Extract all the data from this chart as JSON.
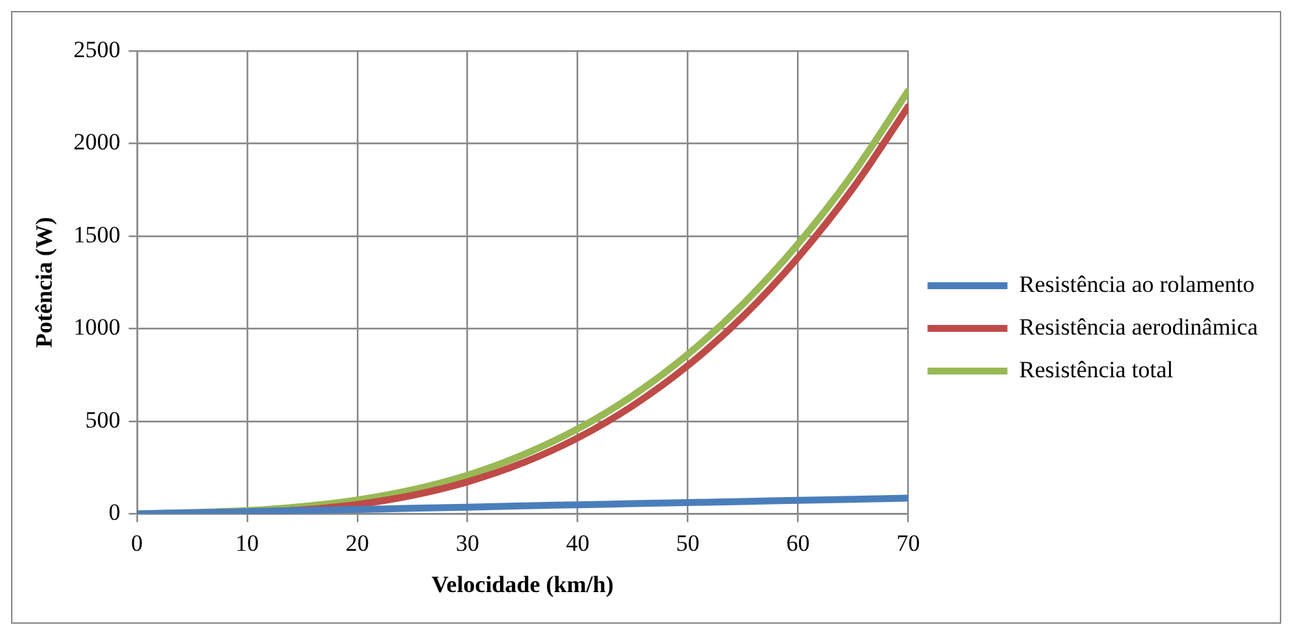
{
  "chart_data": {
    "type": "line",
    "xlabel": "Velocidade (km/h)",
    "ylabel": "Potência (W)",
    "x": [
      0,
      5,
      10,
      15,
      20,
      25,
      30,
      35,
      40,
      45,
      50,
      55,
      60,
      65,
      70
    ],
    "series": [
      {
        "name": "Resistência ao rolamento",
        "color": "#4a7ebb",
        "values": [
          0,
          6,
          12,
          18,
          24,
          30,
          36,
          43,
          49,
          55,
          61,
          67,
          73,
          79,
          85
        ]
      },
      {
        "name": "Resistência aerodinâmica",
        "color": "#be4b48",
        "values": [
          null,
          null,
          6,
          22,
          51,
          100,
          173,
          275,
          410,
          584,
          801,
          1066,
          1385,
          1760,
          2200
        ]
      },
      {
        "name": "Resistência total",
        "color": "#98b954",
        "values": [
          0,
          7,
          18,
          40,
          75,
          130,
          209,
          318,
          459,
          639,
          862,
          1133,
          1458,
          1839,
          2285
        ]
      }
    ],
    "xlim": [
      0,
      70
    ],
    "xticks": [
      0,
      10,
      20,
      30,
      40,
      50,
      60,
      70
    ],
    "ylim": [
      0,
      2500
    ],
    "yticks": [
      0,
      500,
      1000,
      1500,
      2000,
      2500
    ],
    "grid": true,
    "legend": "right",
    "marker": "none",
    "line_style": "solid"
  }
}
